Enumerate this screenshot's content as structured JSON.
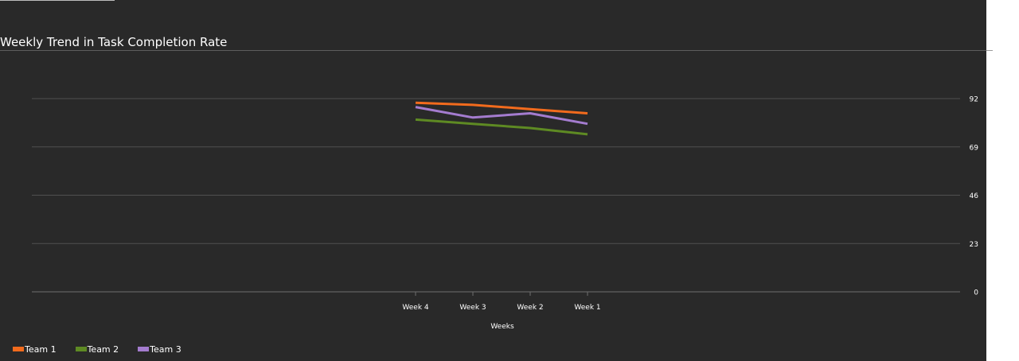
{
  "chart_data": {
    "type": "line",
    "title": "Weekly Trend in Task Completion Rate",
    "xlabel": "Weeks",
    "ylabel": "",
    "categories": [
      "Week 4",
      "Week 3",
      "Week 2",
      "Week 1"
    ],
    "yticks": [
      "0",
      "23",
      "46",
      "69",
      "92"
    ],
    "ylim": [
      0,
      92
    ],
    "y_axis_side": "right",
    "grid": true,
    "legend_position": "bottom-left",
    "series": [
      {
        "name": "Team 1",
        "color": "#f26b1d",
        "values": [
          90,
          89,
          87,
          85
        ]
      },
      {
        "name": "Team 2",
        "color": "#5e8a23",
        "values": [
          82,
          80,
          78,
          75
        ]
      },
      {
        "name": "Team 3",
        "color": "#a47ccf",
        "values": [
          88,
          83,
          85,
          80
        ]
      }
    ]
  }
}
